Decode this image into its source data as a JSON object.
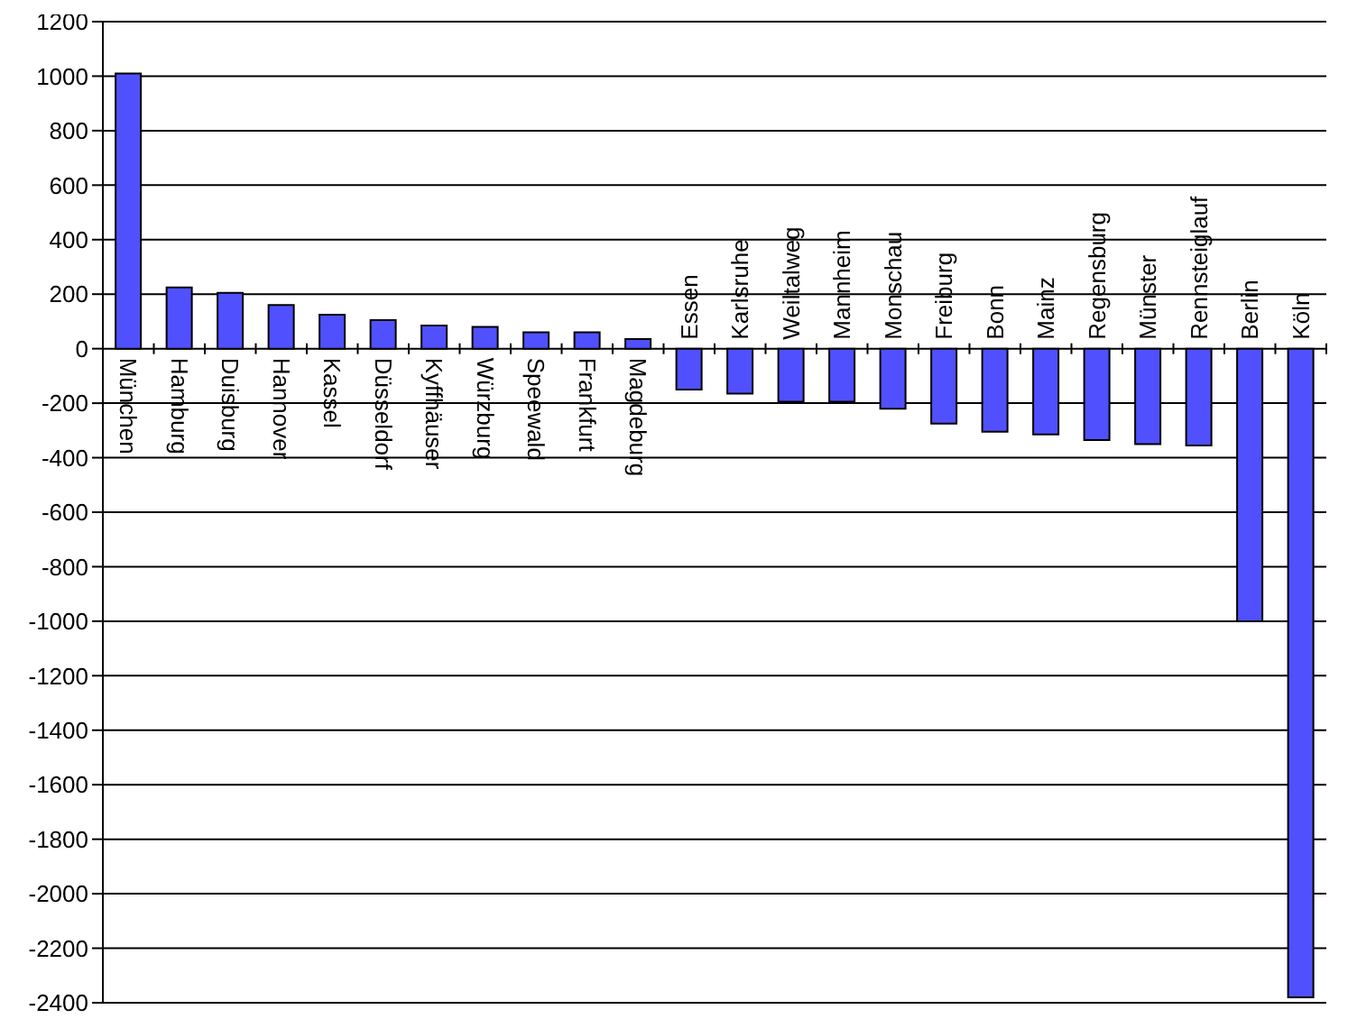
{
  "chart_data": {
    "type": "bar",
    "categories": [
      "München",
      "Hamburg",
      "Duisburg",
      "Hannover",
      "Kassel",
      "Düsseldorf",
      "Kyffhäuser",
      "Würzburg",
      "Speewald",
      "Frankfurt",
      "Magdeburg",
      "Essen",
      "Karlsruhe",
      "Weiltalweg",
      "Mannheim",
      "Monschau",
      "Freiburg",
      "Bonn",
      "Mainz",
      "Regensburg",
      "Münster",
      "Rennsteiglauf",
      "Berlin",
      "Köln"
    ],
    "values": [
      1010,
      225,
      205,
      160,
      125,
      105,
      85,
      80,
      60,
      60,
      35,
      -150,
      -165,
      -195,
      -195,
      -220,
      -275,
      -305,
      -315,
      -335,
      -350,
      -355,
      -1000,
      -2380
    ],
    "color": "#5050ff",
    "ylim": [
      -2400,
      1200
    ],
    "yticks": [
      -2400,
      -2200,
      -2000,
      -1800,
      -1600,
      -1400,
      -1200,
      -1000,
      -800,
      -600,
      -400,
      -200,
      0,
      200,
      400,
      600,
      800,
      1000,
      1200
    ],
    "grid": "y"
  }
}
